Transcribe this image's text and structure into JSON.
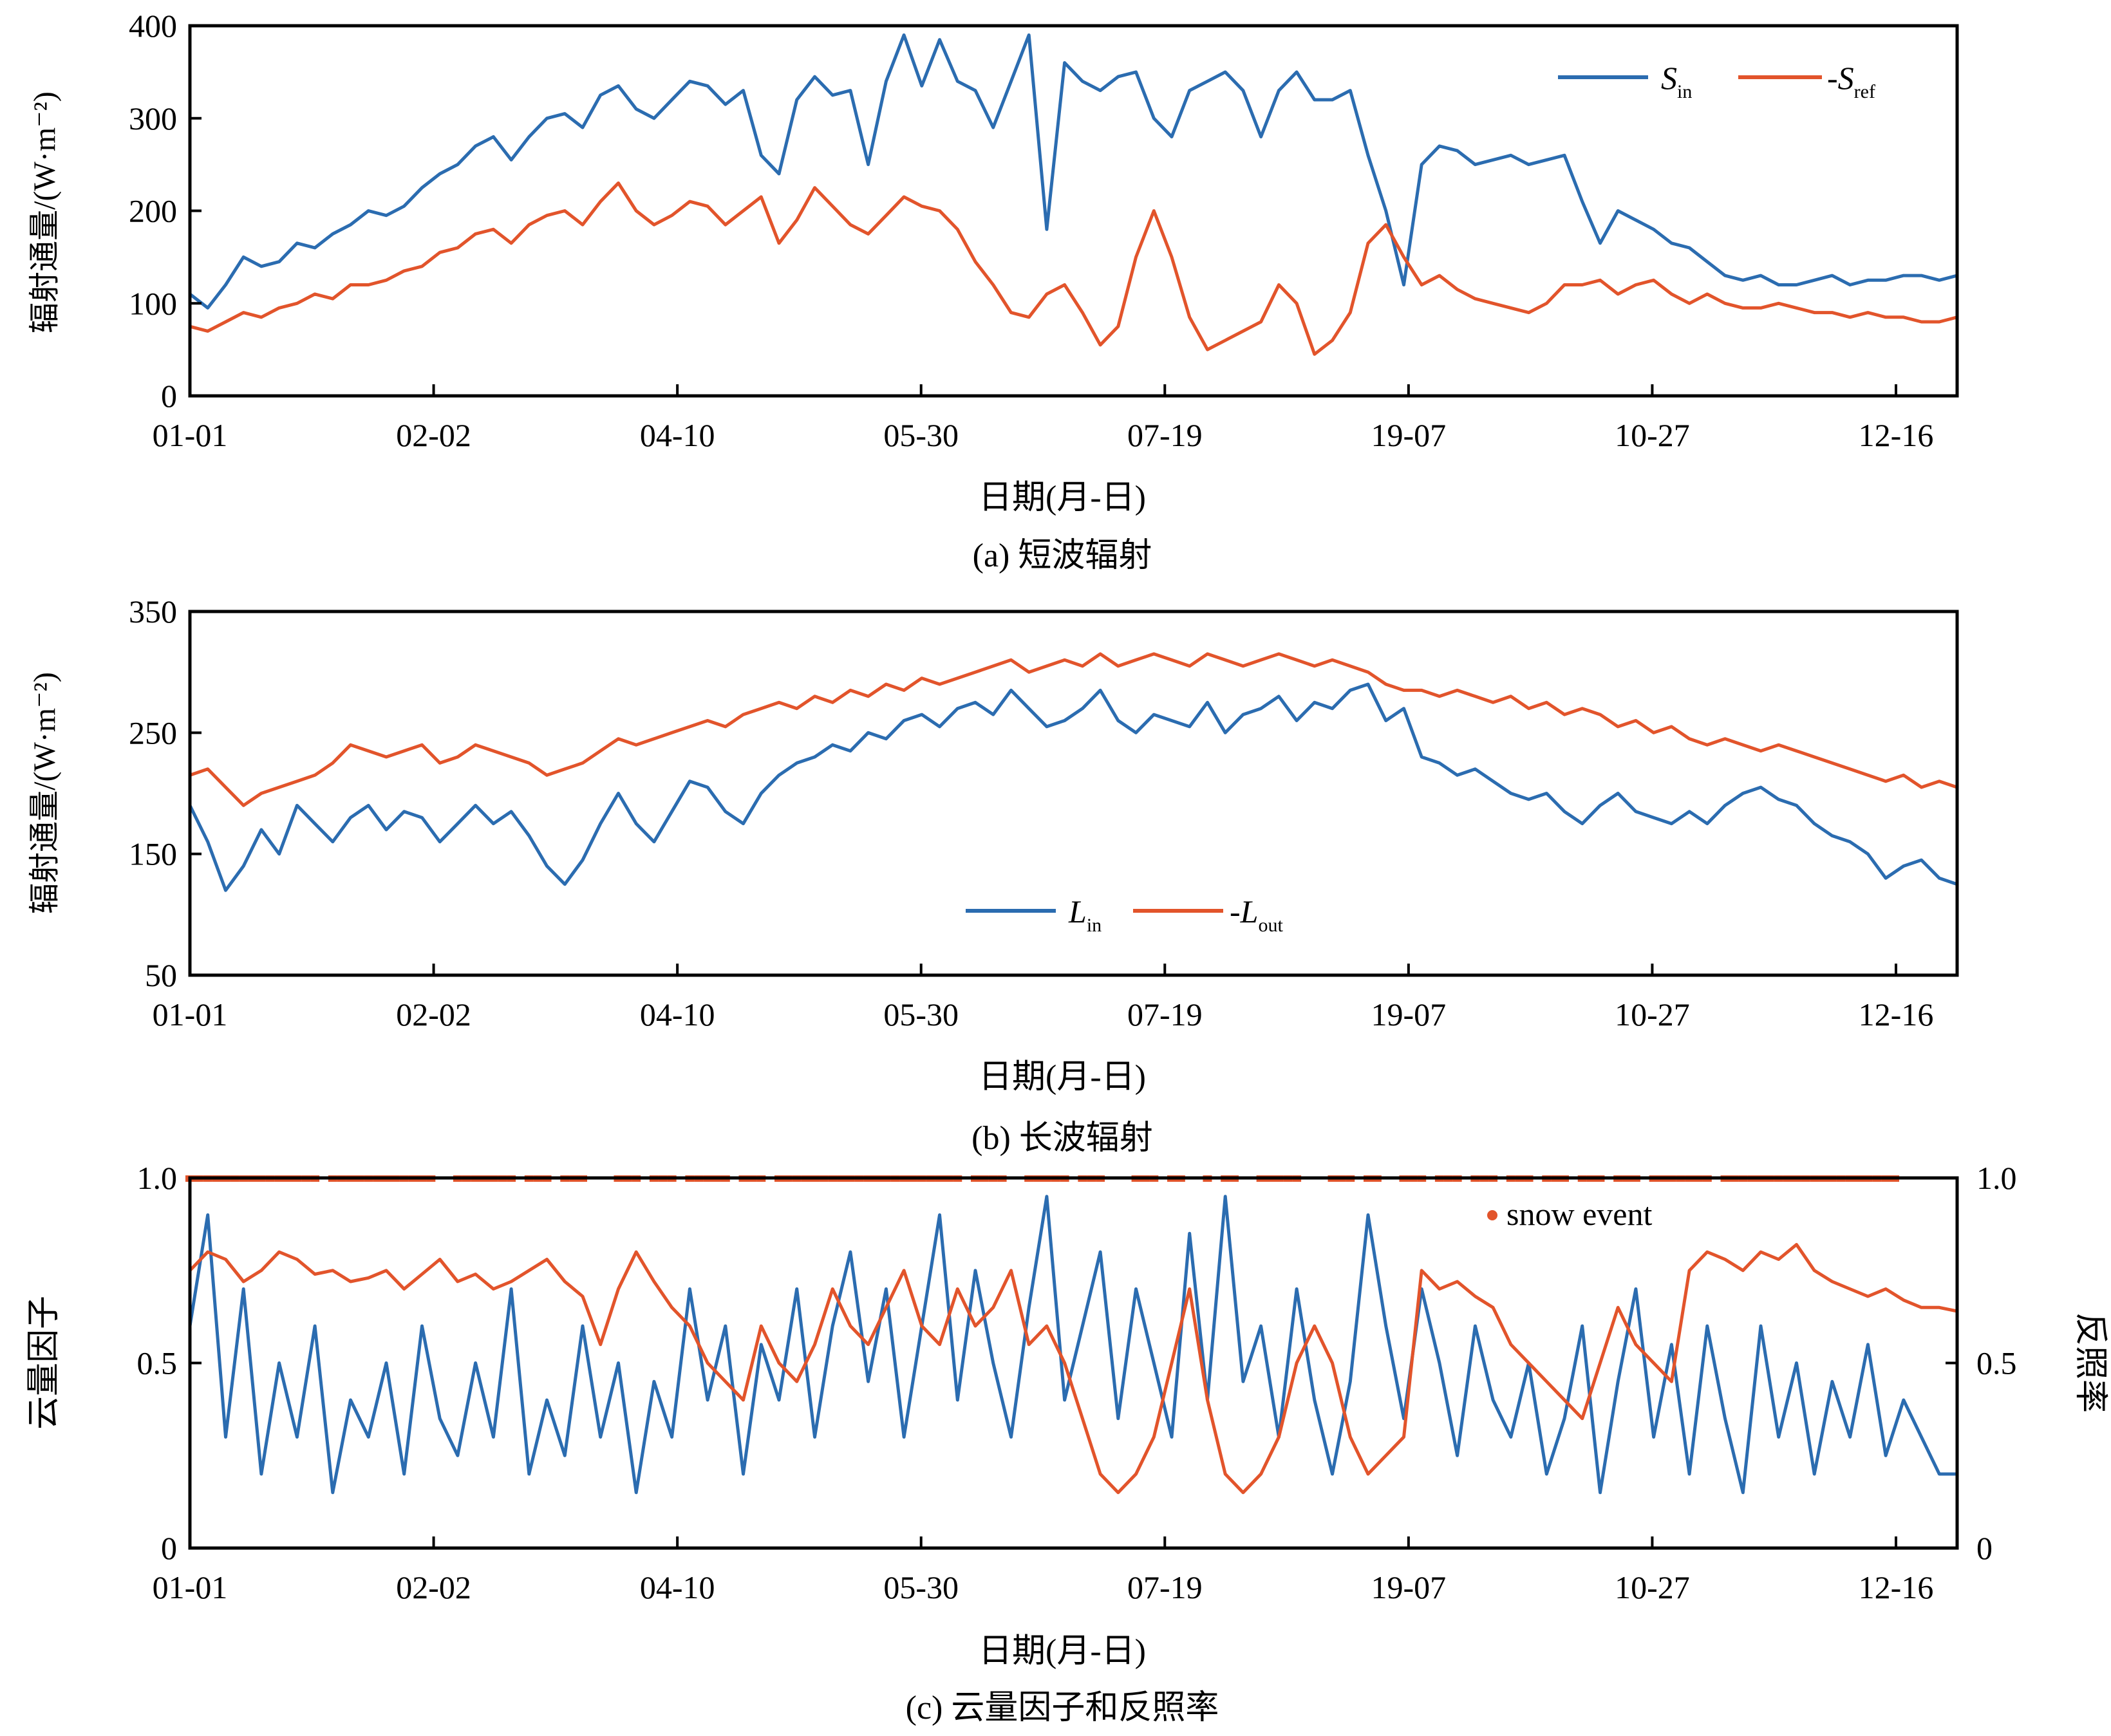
{
  "colors": {
    "blue": "#2b6cb0",
    "red": "#e2542b",
    "axis": "#000000"
  },
  "chart_data": [
    {
      "panel": "a",
      "type": "line",
      "caption": "(a) 短波辐射",
      "xlabel": "日期(月-日)",
      "ylabel": "辐射通量/(W·m⁻²)",
      "x_ticks": [
        "01-01",
        "02-02",
        "04-10",
        "05-30",
        "07-19",
        "19-07",
        "10-27",
        "12-16"
      ],
      "y_ticks": [
        "0",
        "100",
        "200",
        "300",
        "400"
      ],
      "ylim": [
        0,
        400
      ],
      "legend_position": "top-right",
      "legend": [
        {
          "main": "S",
          "sub": "in",
          "prefix": "",
          "color": "blue"
        },
        {
          "main": "S",
          "sub": "ref",
          "prefix": "-",
          "color": "red"
        }
      ],
      "series": [
        {
          "name": "S_in",
          "color": "blue",
          "values": [
            110,
            95,
            120,
            150,
            140,
            145,
            165,
            160,
            175,
            185,
            200,
            195,
            205,
            225,
            240,
            250,
            270,
            280,
            255,
            280,
            300,
            305,
            290,
            325,
            335,
            310,
            300,
            320,
            340,
            335,
            315,
            330,
            260,
            240,
            320,
            345,
            325,
            330,
            250,
            340,
            390,
            335,
            385,
            340,
            330,
            290,
            340,
            390,
            180,
            360,
            340,
            330,
            345,
            350,
            300,
            280,
            330,
            340,
            350,
            330,
            280,
            330,
            350,
            320,
            320,
            330,
            260,
            200,
            120,
            250,
            270,
            265,
            250,
            255,
            260,
            250,
            255,
            260,
            210,
            165,
            200,
            190,
            180,
            165,
            160,
            145,
            130,
            125,
            130,
            120,
            120,
            125,
            130,
            120,
            125,
            125,
            130,
            130,
            125,
            130
          ]
        },
        {
          "name": "-S_ref",
          "color": "red",
          "values": [
            75,
            70,
            80,
            90,
            85,
            95,
            100,
            110,
            105,
            120,
            120,
            125,
            135,
            140,
            155,
            160,
            175,
            180,
            165,
            185,
            195,
            200,
            185,
            210,
            230,
            200,
            185,
            195,
            210,
            205,
            185,
            200,
            215,
            165,
            190,
            225,
            205,
            185,
            175,
            195,
            215,
            205,
            200,
            180,
            145,
            120,
            90,
            85,
            110,
            120,
            90,
            55,
            75,
            150,
            200,
            150,
            85,
            50,
            60,
            70,
            80,
            120,
            100,
            45,
            60,
            90,
            165,
            185,
            150,
            120,
            130,
            115,
            105,
            100,
            95,
            90,
            100,
            120,
            120,
            125,
            110,
            120,
            125,
            110,
            100,
            110,
            100,
            95,
            95,
            100,
            95,
            90,
            90,
            85,
            90,
            85,
            85,
            80,
            80,
            85
          ]
        }
      ]
    },
    {
      "panel": "b",
      "type": "line",
      "caption": "(b) 长波辐射",
      "xlabel": "日期(月-日)",
      "ylabel": "辐射通量/(W·m⁻²)",
      "x_ticks": [
        "01-01",
        "02-02",
        "04-10",
        "05-30",
        "07-19",
        "19-07",
        "10-27",
        "12-16"
      ],
      "y_ticks": [
        "50",
        "150",
        "250",
        "350"
      ],
      "ylim": [
        50,
        350
      ],
      "legend_position": "bottom-center",
      "legend": [
        {
          "main": "L",
          "sub": "in",
          "prefix": "",
          "color": "blue"
        },
        {
          "main": "L",
          "sub": "out",
          "prefix": "-",
          "color": "red"
        }
      ],
      "series": [
        {
          "name": "L_in",
          "color": "blue",
          "values": [
            190,
            160,
            120,
            140,
            170,
            150,
            190,
            175,
            160,
            180,
            190,
            170,
            185,
            180,
            160,
            175,
            190,
            175,
            185,
            165,
            140,
            125,
            145,
            175,
            200,
            175,
            160,
            185,
            210,
            205,
            185,
            175,
            200,
            215,
            225,
            230,
            240,
            235,
            250,
            245,
            260,
            265,
            255,
            270,
            275,
            265,
            285,
            270,
            255,
            260,
            270,
            285,
            260,
            250,
            265,
            260,
            255,
            275,
            250,
            265,
            270,
            280,
            260,
            275,
            270,
            285,
            290,
            260,
            270,
            230,
            225,
            215,
            220,
            210,
            200,
            195,
            200,
            185,
            175,
            190,
            200,
            185,
            180,
            175,
            185,
            175,
            190,
            200,
            205,
            195,
            190,
            175,
            165,
            160,
            150,
            130,
            140,
            145,
            130,
            125
          ]
        },
        {
          "name": "-L_out",
          "color": "red",
          "values": [
            215,
            220,
            205,
            190,
            200,
            205,
            210,
            215,
            225,
            240,
            235,
            230,
            235,
            240,
            225,
            230,
            240,
            235,
            230,
            225,
            215,
            220,
            225,
            235,
            245,
            240,
            245,
            250,
            255,
            260,
            255,
            265,
            270,
            275,
            270,
            280,
            275,
            285,
            280,
            290,
            285,
            295,
            290,
            295,
            300,
            305,
            310,
            300,
            305,
            310,
            305,
            315,
            305,
            310,
            315,
            310,
            305,
            315,
            310,
            305,
            310,
            315,
            310,
            305,
            310,
            305,
            300,
            290,
            285,
            285,
            280,
            285,
            280,
            275,
            280,
            270,
            275,
            265,
            270,
            265,
            255,
            260,
            250,
            255,
            245,
            240,
            245,
            240,
            235,
            240,
            235,
            230,
            225,
            220,
            215,
            210,
            215,
            205,
            210,
            205
          ]
        }
      ]
    },
    {
      "panel": "c",
      "type": "line",
      "caption": "(c) 云量因子和反照率",
      "xlabel": "日期(月-日)",
      "ylabel": "云量因子",
      "ylabel_right": "反照率",
      "x_ticks": [
        "01-01",
        "02-02",
        "04-10",
        "05-30",
        "07-19",
        "19-07",
        "10-27",
        "12-16"
      ],
      "y_ticks": [
        "0",
        "0.5",
        "1.0"
      ],
      "y_ticks_right": [
        "0",
        "0.5",
        "1.0"
      ],
      "ylim": [
        0,
        1
      ],
      "legend_position": "top-right",
      "legend": [
        {
          "main": "snow event",
          "sub": "",
          "prefix": "",
          "color": "red"
        }
      ],
      "series": [
        {
          "name": "cloud factor",
          "color": "blue",
          "values": [
            0.6,
            0.9,
            0.3,
            0.7,
            0.2,
            0.5,
            0.3,
            0.6,
            0.15,
            0.4,
            0.3,
            0.5,
            0.2,
            0.6,
            0.35,
            0.25,
            0.5,
            0.3,
            0.7,
            0.2,
            0.4,
            0.25,
            0.6,
            0.3,
            0.5,
            0.15,
            0.45,
            0.3,
            0.7,
            0.4,
            0.6,
            0.2,
            0.55,
            0.4,
            0.7,
            0.3,
            0.6,
            0.8,
            0.45,
            0.7,
            0.3,
            0.6,
            0.9,
            0.4,
            0.75,
            0.5,
            0.3,
            0.65,
            0.95,
            0.4,
            0.6,
            0.8,
            0.35,
            0.7,
            0.5,
            0.3,
            0.85,
            0.4,
            0.95,
            0.45,
            0.6,
            0.3,
            0.7,
            0.4,
            0.2,
            0.45,
            0.9,
            0.6,
            0.35,
            0.7,
            0.5,
            0.25,
            0.6,
            0.4,
            0.3,
            0.5,
            0.2,
            0.35,
            0.6,
            0.15,
            0.45,
            0.7,
            0.3,
            0.55,
            0.2,
            0.6,
            0.35,
            0.15,
            0.6,
            0.3,
            0.5,
            0.2,
            0.45,
            0.3,
            0.55,
            0.25,
            0.4,
            0.3,
            0.2,
            0.2
          ]
        },
        {
          "name": "albedo",
          "color": "red",
          "values": [
            0.75,
            0.8,
            0.78,
            0.72,
            0.75,
            0.8,
            0.78,
            0.74,
            0.75,
            0.72,
            0.73,
            0.75,
            0.7,
            0.74,
            0.78,
            0.72,
            0.74,
            0.7,
            0.72,
            0.75,
            0.78,
            0.72,
            0.68,
            0.55,
            0.7,
            0.8,
            0.72,
            0.65,
            0.6,
            0.5,
            0.45,
            0.4,
            0.6,
            0.5,
            0.45,
            0.55,
            0.7,
            0.6,
            0.55,
            0.65,
            0.75,
            0.6,
            0.55,
            0.7,
            0.6,
            0.65,
            0.75,
            0.55,
            0.6,
            0.5,
            0.35,
            0.2,
            0.15,
            0.2,
            0.3,
            0.5,
            0.7,
            0.4,
            0.2,
            0.15,
            0.2,
            0.3,
            0.5,
            0.6,
            0.5,
            0.3,
            0.2,
            0.25,
            0.3,
            0.75,
            0.7,
            0.72,
            0.68,
            0.65,
            0.55,
            0.5,
            0.45,
            0.4,
            0.35,
            0.5,
            0.65,
            0.55,
            0.5,
            0.45,
            0.75,
            0.8,
            0.78,
            0.75,
            0.8,
            0.78,
            0.82,
            0.75,
            0.72,
            0.7,
            0.68,
            0.7,
            0.67,
            0.65,
            0.65,
            0.64
          ]
        }
      ],
      "snow_events_x": [
        0,
        0.5,
        1,
        1.5,
        2,
        2.5,
        3,
        3.5,
        4,
        4.5,
        5,
        5.5,
        6,
        6.5,
        7,
        8,
        8.5,
        9,
        9.5,
        10,
        10.5,
        11,
        11.5,
        12,
        12.5,
        13,
        13.5,
        15,
        15.5,
        16,
        16.5,
        17,
        17.5,
        18,
        19,
        19.5,
        20,
        21,
        21.5,
        22,
        24,
        24.5,
        25,
        26,
        26.5,
        27,
        28,
        28.5,
        29,
        29.5,
        30,
        31,
        31.5,
        32,
        33,
        33.5,
        34,
        34.5,
        35,
        35.5,
        36,
        36.5,
        37,
        37.5,
        38,
        38.5,
        39,
        39.5,
        40,
        40.5,
        41,
        41.5,
        42,
        42.5,
        43,
        44,
        44.5,
        45,
        45.5,
        47,
        47.5,
        48,
        48.5,
        49,
        50,
        50.5,
        51,
        53,
        53.5,
        54,
        55,
        55.5,
        57,
        58,
        58.5,
        60,
        60.5,
        61,
        61.5,
        62,
        64,
        64.5,
        65,
        66,
        66.5,
        68,
        68.5,
        69,
        70,
        70.5,
        71,
        72,
        72.5,
        73,
        74,
        74.5,
        75,
        76,
        76.5,
        77,
        78,
        78.5,
        79,
        80,
        80.5,
        81,
        82,
        82.5,
        83,
        83.5,
        84,
        84.5,
        85,
        86,
        86.5,
        87,
        87.5,
        88,
        88.5,
        89,
        89.5,
        90,
        90.5,
        91,
        91.5,
        92,
        92.5,
        93,
        93.5,
        94,
        94.5,
        95,
        95.5
      ]
    }
  ]
}
